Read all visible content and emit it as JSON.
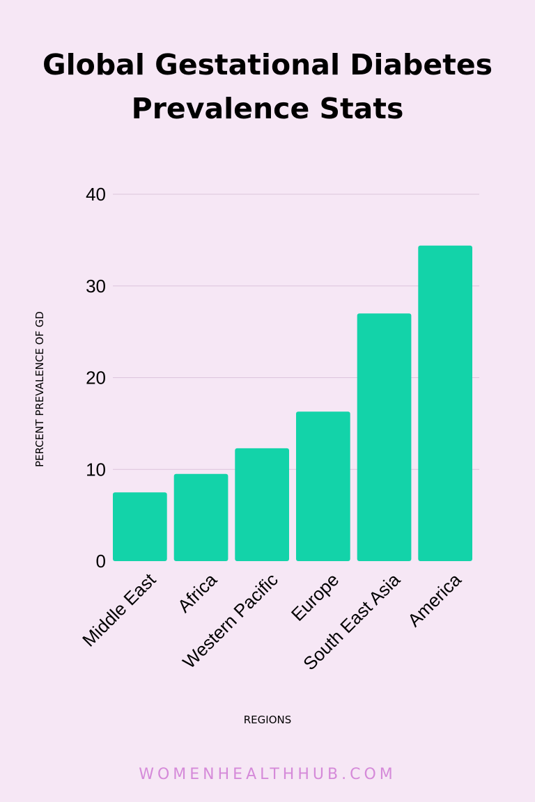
{
  "title_lines": [
    "Global Gestational Diabetes",
    "Prevalence Stats"
  ],
  "footer": "WOMENHEALTHHUB.COM",
  "colors": {
    "background": "#f6e7f5",
    "bar": "#13d3a9",
    "grid": "#dcc4dc",
    "footer": "#d58ad9"
  },
  "chart_data": {
    "type": "bar",
    "categories": [
      "Middle East",
      "Africa",
      "Western Pacific",
      "Europe",
      "South East Asia",
      "America"
    ],
    "values": [
      7.5,
      9.5,
      12.3,
      16.3,
      27,
      34.4
    ],
    "xlabel": "REGIONS",
    "ylabel": "PERCENT PREVALENCE OF GD",
    "ylim": [
      0,
      40
    ],
    "yticks": [
      0,
      10,
      20,
      30,
      40
    ],
    "grid": true
  }
}
